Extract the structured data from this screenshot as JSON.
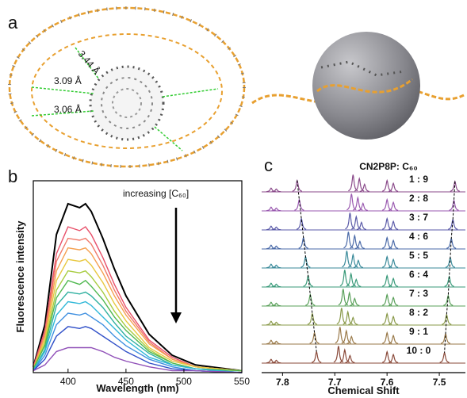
{
  "panel_a": {
    "label": "a",
    "distances": [
      "3.44 Å",
      "3.09 Å",
      "3.06 Å"
    ]
  },
  "chart_data": [
    {
      "type": "line",
      "panel_label": "b",
      "annotation": "increasing [C₆₀]",
      "x_label": "Wavelength (nm)",
      "y_label": "Fluorescence intensity",
      "xlim": [
        370,
        550
      ],
      "xticks": [
        400,
        450,
        500,
        550
      ],
      "ylim": [
        0,
        100
      ],
      "x": [
        370,
        380,
        390,
        400,
        410,
        415,
        420,
        430,
        440,
        450,
        470,
        490,
        510,
        550
      ],
      "series": [
        {
          "color": "#000000",
          "values": [
            3,
            25,
            72,
            88,
            86,
            88,
            84,
            70,
            54,
            40,
            20,
            9,
            4,
            1
          ]
        },
        {
          "color": "#e8506a",
          "values": [
            3,
            22,
            62,
            76,
            74,
            76,
            72,
            60,
            46,
            34,
            17,
            8,
            3,
            1
          ]
        },
        {
          "color": "#f07a6a",
          "values": [
            2,
            20,
            58,
            70,
            69,
            70,
            67,
            56,
            43,
            32,
            16,
            7,
            3,
            1
          ]
        },
        {
          "color": "#f5a050",
          "values": [
            2,
            19,
            53,
            65,
            64,
            65,
            62,
            52,
            40,
            30,
            15,
            7,
            3,
            1
          ]
        },
        {
          "color": "#e8c840",
          "values": [
            2,
            17,
            48,
            59,
            58,
            59,
            56,
            47,
            36,
            27,
            13,
            6,
            3,
            1
          ]
        },
        {
          "color": "#a8cc40",
          "values": [
            2,
            15,
            43,
            53,
            52,
            53,
            50,
            42,
            32,
            24,
            12,
            5,
            2,
            1
          ]
        },
        {
          "color": "#50b850",
          "values": [
            2,
            14,
            39,
            48,
            46,
            48,
            45,
            38,
            29,
            22,
            11,
            5,
            2,
            1
          ]
        },
        {
          "color": "#30b0a0",
          "values": [
            1,
            12,
            35,
            42,
            41,
            42,
            40,
            34,
            26,
            19,
            10,
            4,
            2,
            0
          ]
        },
        {
          "color": "#30b8d8",
          "values": [
            1,
            11,
            30,
            37,
            36,
            37,
            35,
            29,
            23,
            17,
            8,
            4,
            2,
            0
          ]
        },
        {
          "color": "#4090e0",
          "values": [
            1,
            9,
            25,
            31,
            30,
            31,
            29,
            25,
            19,
            14,
            7,
            3,
            1,
            0
          ]
        },
        {
          "color": "#3050c8",
          "values": [
            1,
            7,
            19,
            24,
            23,
            24,
            23,
            19,
            15,
            11,
            5,
            2,
            1,
            0
          ]
        },
        {
          "color": "#9050b8",
          "values": [
            1,
            4,
            11,
            13,
            13,
            13,
            13,
            11,
            8,
            6,
            3,
            1,
            1,
            0
          ]
        }
      ]
    },
    {
      "type": "spectra",
      "panel_label": "c",
      "title": "CN2P8P: C₆₀",
      "x_label": "Chemical Shift",
      "xlim": [
        7.84,
        7.45
      ],
      "xticks": [
        7.8,
        7.7,
        7.6,
        7.5
      ],
      "series": [
        {
          "name": "1 : 9",
          "color": "#8a4a8a",
          "x": [
            7.822,
            7.812,
            7.772,
            7.665,
            7.653,
            7.643,
            7.6,
            7.588,
            7.47
          ],
          "values": [
            0.2,
            0.15,
            0.6,
            0.9,
            0.7,
            0.4,
            0.6,
            0.45,
            0.55
          ]
        },
        {
          "name": "2 : 8",
          "color": "#9a5ab0",
          "x": [
            7.822,
            7.812,
            7.768,
            7.668,
            7.656,
            7.646,
            7.6,
            7.588,
            7.472
          ],
          "values": [
            0.2,
            0.15,
            0.6,
            0.9,
            0.7,
            0.4,
            0.6,
            0.45,
            0.55
          ]
        },
        {
          "name": "3 : 7",
          "color": "#5a5aa8",
          "x": [
            7.822,
            7.812,
            7.764,
            7.671,
            7.659,
            7.649,
            7.6,
            7.588,
            7.474
          ],
          "values": [
            0.2,
            0.15,
            0.6,
            0.9,
            0.7,
            0.4,
            0.6,
            0.45,
            0.55
          ]
        },
        {
          "name": "4 : 6",
          "color": "#4a6aa8",
          "x": [
            7.822,
            7.812,
            7.76,
            7.674,
            7.662,
            7.652,
            7.6,
            7.588,
            7.477
          ],
          "values": [
            0.2,
            0.15,
            0.6,
            0.9,
            0.7,
            0.4,
            0.6,
            0.45,
            0.55
          ]
        },
        {
          "name": "5 : 5",
          "color": "#3a8a9a",
          "x": [
            7.822,
            7.812,
            7.756,
            7.677,
            7.665,
            7.655,
            7.6,
            7.588,
            7.479
          ],
          "values": [
            0.2,
            0.15,
            0.6,
            0.9,
            0.7,
            0.4,
            0.6,
            0.45,
            0.55
          ]
        },
        {
          "name": "6 : 4",
          "color": "#3a9a7a",
          "x": [
            7.822,
            7.812,
            7.751,
            7.681,
            7.669,
            7.659,
            7.6,
            7.588,
            7.481
          ],
          "values": [
            0.2,
            0.15,
            0.6,
            0.9,
            0.7,
            0.4,
            0.6,
            0.45,
            0.55
          ]
        },
        {
          "name": "7 : 3",
          "color": "#5aa05a",
          "x": [
            7.822,
            7.812,
            7.747,
            7.684,
            7.672,
            7.662,
            7.6,
            7.588,
            7.483
          ],
          "values": [
            0.2,
            0.15,
            0.6,
            0.9,
            0.7,
            0.4,
            0.6,
            0.45,
            0.55
          ]
        },
        {
          "name": "8 : 2",
          "color": "#8a9a4a",
          "x": [
            7.822,
            7.812,
            7.743,
            7.687,
            7.675,
            7.665,
            7.6,
            7.588,
            7.486
          ],
          "values": [
            0.2,
            0.15,
            0.6,
            0.9,
            0.7,
            0.4,
            0.6,
            0.45,
            0.55
          ]
        },
        {
          "name": "9 : 1",
          "color": "#9a7a4a",
          "x": [
            7.822,
            7.812,
            7.739,
            7.69,
            7.678,
            7.668,
            7.6,
            7.588,
            7.488
          ],
          "values": [
            0.2,
            0.15,
            0.6,
            0.9,
            0.7,
            0.4,
            0.6,
            0.45,
            0.55
          ]
        },
        {
          "name": "10 : 0",
          "color": "#8a4a3a",
          "x": [
            7.822,
            7.812,
            7.735,
            7.693,
            7.681,
            7.671,
            7.6,
            7.588,
            7.49
          ],
          "values": [
            0.2,
            0.15,
            0.6,
            0.9,
            0.7,
            0.4,
            0.6,
            0.45,
            0.55
          ]
        }
      ]
    }
  ]
}
